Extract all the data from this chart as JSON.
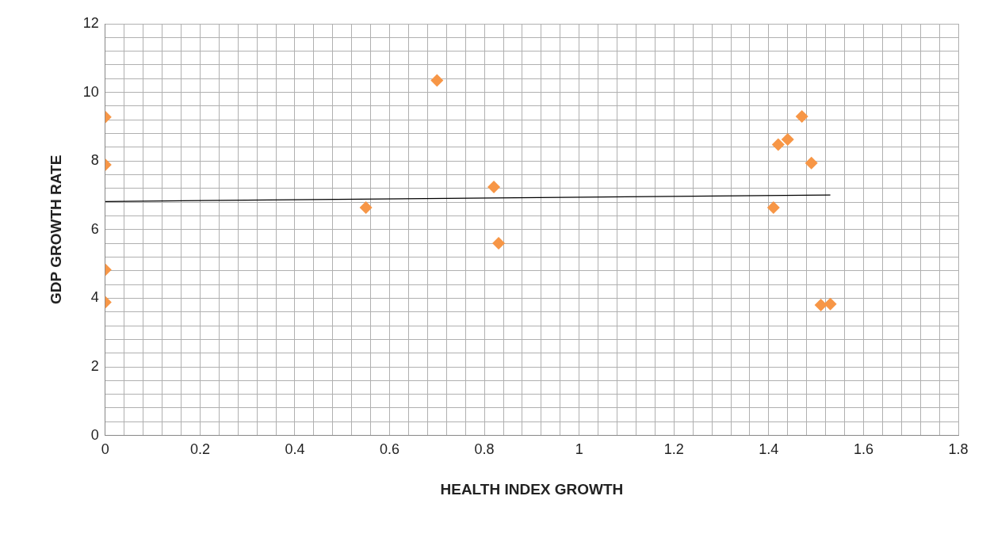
{
  "chart_data": {
    "type": "scatter",
    "xlabel": "HEALTH INDEX GROWTH",
    "ylabel": "GDP GROWTH RATE",
    "xlim": [
      0,
      1.8
    ],
    "ylim": [
      0,
      12
    ],
    "xticks": [
      0,
      {
        "value": 0.04,
        "label": null
      },
      {
        "value": 0.08,
        "label": null
      },
      {
        "value": 0.12,
        "label": null
      },
      {
        "value": 0.16,
        "label": null
      },
      0.2,
      {
        "value": 0.24,
        "label": null
      },
      {
        "value": 0.28,
        "label": null
      },
      {
        "value": 0.32,
        "label": null
      },
      {
        "value": 0.36,
        "label": null
      },
      0.4,
      {
        "value": 0.44,
        "label": null
      },
      {
        "value": 0.48,
        "label": null
      },
      {
        "value": 0.52,
        "label": null
      },
      {
        "value": 0.56,
        "label": null
      },
      0.6,
      {
        "value": 0.64,
        "label": null
      },
      {
        "value": 0.68,
        "label": null
      },
      {
        "value": 0.72,
        "label": null
      },
      {
        "value": 0.76,
        "label": null
      },
      0.8,
      {
        "value": 0.84,
        "label": null
      },
      {
        "value": 0.88,
        "label": null
      },
      {
        "value": 0.92,
        "label": null
      },
      {
        "value": 0.96,
        "label": null
      },
      1,
      {
        "value": 1.04,
        "label": null
      },
      {
        "value": 1.08,
        "label": null
      },
      {
        "value": 1.12,
        "label": null
      },
      {
        "value": 1.16,
        "label": null
      },
      1.2,
      {
        "value": 1.24,
        "label": null
      },
      {
        "value": 1.28,
        "label": null
      },
      {
        "value": 1.32,
        "label": null
      },
      {
        "value": 1.36,
        "label": null
      },
      1.4,
      {
        "value": 1.44,
        "label": null
      },
      {
        "value": 1.48,
        "label": null
      },
      {
        "value": 1.52,
        "label": null
      },
      {
        "value": 1.56,
        "label": null
      },
      1.6,
      {
        "value": 1.64,
        "label": null
      },
      {
        "value": 1.68,
        "label": null
      },
      {
        "value": 1.72,
        "label": null
      },
      {
        "value": 1.76,
        "label": null
      },
      1.8
    ],
    "yticks": [
      0,
      {
        "value": 0.4,
        "label": null
      },
      {
        "value": 0.8,
        "label": null
      },
      {
        "value": 1.2,
        "label": null
      },
      {
        "value": 1.6,
        "label": null
      },
      2,
      {
        "value": 2.4,
        "label": null
      },
      {
        "value": 2.8,
        "label": null
      },
      {
        "value": 3.2,
        "label": null
      },
      {
        "value": 3.6,
        "label": null
      },
      4,
      {
        "value": 4.4,
        "label": null
      },
      {
        "value": 4.8,
        "label": null
      },
      {
        "value": 5.2,
        "label": null
      },
      {
        "value": 5.6,
        "label": null
      },
      6,
      {
        "value": 6.4,
        "label": null
      },
      {
        "value": 6.8,
        "label": null
      },
      {
        "value": 7.2,
        "label": null
      },
      {
        "value": 7.6,
        "label": null
      },
      8,
      {
        "value": 8.4,
        "label": null
      },
      {
        "value": 8.8,
        "label": null
      },
      {
        "value": 9.2,
        "label": null
      },
      {
        "value": 9.6,
        "label": null
      },
      10,
      {
        "value": 10.4,
        "label": null
      },
      {
        "value": 10.8,
        "label": null
      },
      {
        "value": 11.2,
        "label": null
      },
      {
        "value": 11.6,
        "label": null
      },
      12
    ],
    "grid": true,
    "marker": "diamond",
    "series": [
      {
        "color": "#f79646",
        "x": [
          0,
          0,
          0,
          0,
          0.55,
          0.7,
          0.82,
          0.83,
          1.41,
          1.42,
          1.44,
          1.47,
          1.49,
          1.51,
          1.53
        ],
        "values": [
          9.28,
          7.89,
          4.83,
          3.88,
          6.64,
          10.35,
          7.24,
          5.6,
          6.64,
          8.48,
          8.63,
          9.3,
          7.94,
          3.8,
          3.83
        ]
      },
      {
        "type": "line",
        "marker": "none",
        "color": "#000000",
        "x": [
          0,
          1.53
        ],
        "values": [
          6.82,
          7.01
        ]
      }
    ]
  }
}
